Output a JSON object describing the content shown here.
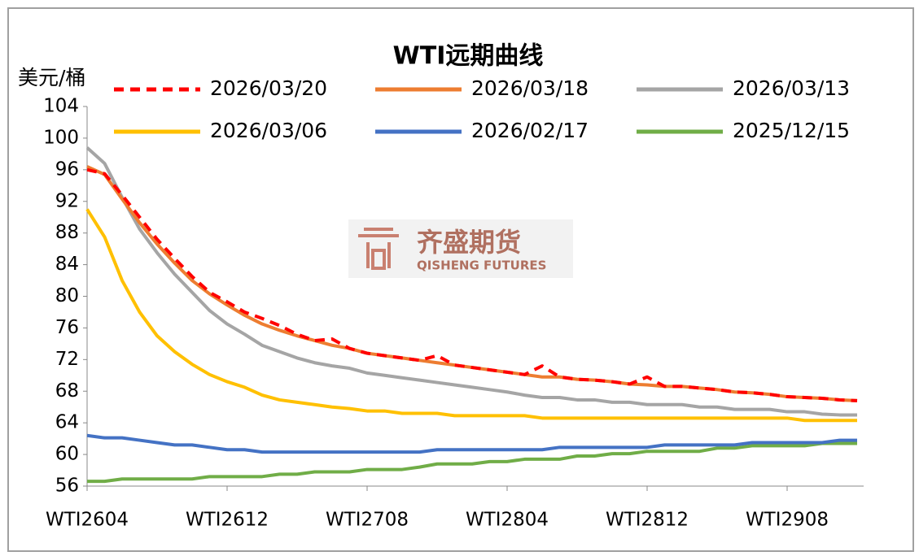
{
  "chart_data": {
    "type": "line",
    "title": "WTI远期曲线",
    "y_label": "美元/桶",
    "watermark": {
      "name": "齐盛期货",
      "subname": "QISHENG FUTURES"
    },
    "categories": [
      "WTI2604",
      null,
      null,
      null,
      null,
      null,
      null,
      null,
      "WTI2612",
      null,
      null,
      null,
      null,
      null,
      null,
      null,
      "WTI2708",
      null,
      null,
      null,
      null,
      null,
      null,
      null,
      "WTI2804",
      null,
      null,
      null,
      null,
      null,
      null,
      null,
      "WTI2812",
      null,
      null,
      null,
      null,
      null,
      null,
      null,
      "WTI2908",
      null,
      null,
      null,
      null
    ],
    "ylim": [
      56,
      104
    ],
    "yticks": [
      56,
      60,
      64,
      68,
      72,
      76,
      80,
      84,
      88,
      92,
      96,
      100,
      104
    ],
    "legend": "top",
    "series": [
      {
        "name": "2026/03/20",
        "color": "#ff0000",
        "dashed": true,
        "values": [
          96.0,
          95.5,
          92.8,
          90.0,
          87.2,
          84.8,
          82.5,
          80.5,
          79.3,
          78.0,
          77.2,
          76.3,
          75.2,
          74.4,
          74.6,
          73.4,
          72.8,
          72.5,
          72.2,
          71.9,
          72.5,
          71.3,
          71.0,
          70.7,
          70.4,
          70.1,
          71.2,
          69.8,
          69.5,
          69.4,
          69.2,
          68.9,
          69.8,
          68.6,
          68.6,
          68.4,
          68.2,
          67.9,
          67.8,
          67.6,
          67.3,
          67.2,
          67.1,
          66.9,
          66.8
        ]
      },
      {
        "name": "2026/03/18",
        "color": "#ed7d31",
        "values": [
          96.4,
          95.4,
          92.3,
          89.3,
          86.6,
          84.2,
          82.0,
          80.3,
          78.9,
          77.6,
          76.5,
          75.7,
          75.0,
          74.4,
          73.8,
          73.4,
          72.8,
          72.5,
          72.2,
          71.9,
          71.6,
          71.3,
          71.0,
          70.7,
          70.4,
          70.1,
          69.8,
          69.8,
          69.5,
          69.4,
          69.2,
          68.9,
          68.8,
          68.6,
          68.6,
          68.4,
          68.2,
          67.9,
          67.8,
          67.6,
          67.3,
          67.2,
          67.1,
          66.9,
          66.8
        ]
      },
      {
        "name": "2026/03/13",
        "color": "#a5a5a5",
        "values": [
          98.8,
          96.8,
          92.5,
          88.5,
          85.5,
          82.8,
          80.5,
          78.2,
          76.5,
          75.2,
          73.8,
          73.0,
          72.2,
          71.6,
          71.2,
          70.9,
          70.3,
          70.0,
          69.7,
          69.4,
          69.1,
          68.8,
          68.5,
          68.2,
          67.9,
          67.5,
          67.2,
          67.2,
          66.9,
          66.9,
          66.6,
          66.6,
          66.3,
          66.3,
          66.3,
          66.0,
          66.0,
          65.7,
          65.7,
          65.7,
          65.4,
          65.4,
          65.1,
          65.0,
          65.0
        ]
      },
      {
        "name": "2026/03/06",
        "color": "#ffc000",
        "values": [
          91.0,
          87.5,
          82.0,
          78.0,
          75.0,
          73.0,
          71.4,
          70.1,
          69.2,
          68.5,
          67.5,
          66.9,
          66.6,
          66.3,
          66.0,
          65.8,
          65.5,
          65.5,
          65.2,
          65.2,
          65.2,
          64.9,
          64.9,
          64.9,
          64.9,
          64.9,
          64.6,
          64.6,
          64.6,
          64.6,
          64.6,
          64.6,
          64.6,
          64.6,
          64.6,
          64.6,
          64.6,
          64.6,
          64.6,
          64.6,
          64.6,
          64.3,
          64.3,
          64.3,
          64.3
        ]
      },
      {
        "name": "2026/02/17",
        "color": "#4472c4",
        "values": [
          62.4,
          62.1,
          62.1,
          61.8,
          61.5,
          61.2,
          61.2,
          60.9,
          60.6,
          60.6,
          60.3,
          60.3,
          60.3,
          60.3,
          60.3,
          60.3,
          60.3,
          60.3,
          60.3,
          60.3,
          60.6,
          60.6,
          60.6,
          60.6,
          60.6,
          60.6,
          60.6,
          60.9,
          60.9,
          60.9,
          60.9,
          60.9,
          60.9,
          61.2,
          61.2,
          61.2,
          61.2,
          61.2,
          61.5,
          61.5,
          61.5,
          61.5,
          61.5,
          61.8,
          61.8
        ]
      },
      {
        "name": "2025/12/15",
        "color": "#70ad47",
        "values": [
          56.6,
          56.6,
          56.9,
          56.9,
          56.9,
          56.9,
          56.9,
          57.2,
          57.2,
          57.2,
          57.2,
          57.5,
          57.5,
          57.8,
          57.8,
          57.8,
          58.1,
          58.1,
          58.1,
          58.4,
          58.8,
          58.8,
          58.8,
          59.1,
          59.1,
          59.4,
          59.4,
          59.4,
          59.8,
          59.8,
          60.1,
          60.1,
          60.4,
          60.4,
          60.4,
          60.4,
          60.8,
          60.8,
          61.1,
          61.1,
          61.1,
          61.1,
          61.4,
          61.4,
          61.4
        ]
      }
    ]
  }
}
